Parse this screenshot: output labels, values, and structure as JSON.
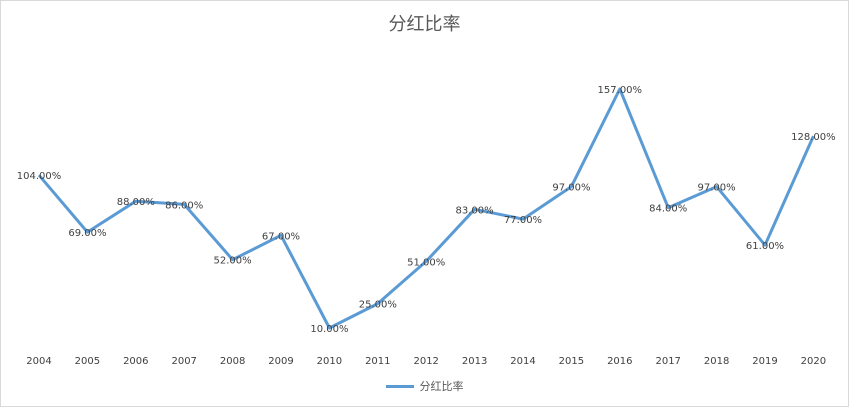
{
  "chart_data": {
    "type": "line",
    "title": "分红比率",
    "categories": [
      "2004",
      "2005",
      "2006",
      "2007",
      "2008",
      "2009",
      "2010",
      "2011",
      "2012",
      "2013",
      "2014",
      "2015",
      "2016",
      "2017",
      "2018",
      "2019",
      "2020"
    ],
    "series": [
      {
        "name": "分红比率",
        "color": "#5b9bd5",
        "values": [
          104,
          69,
          88,
          86,
          52,
          67,
          10,
          25,
          51,
          83,
          77,
          97,
          157,
          84,
          97,
          61,
          128
        ],
        "labels": [
          "104.00%",
          "69.00%",
          "88.00%",
          "86.00%",
          "52.00%",
          "67.00%",
          "10.00%",
          "25.00%",
          "51.00%",
          "83.00%",
          "77.00%",
          "97.00%",
          "157.00%",
          "84.00%",
          "97.00%",
          "61.00%",
          "128.00%"
        ]
      }
    ],
    "ylim": [
      0,
      160
    ],
    "grid": false,
    "legend": "bottom"
  }
}
